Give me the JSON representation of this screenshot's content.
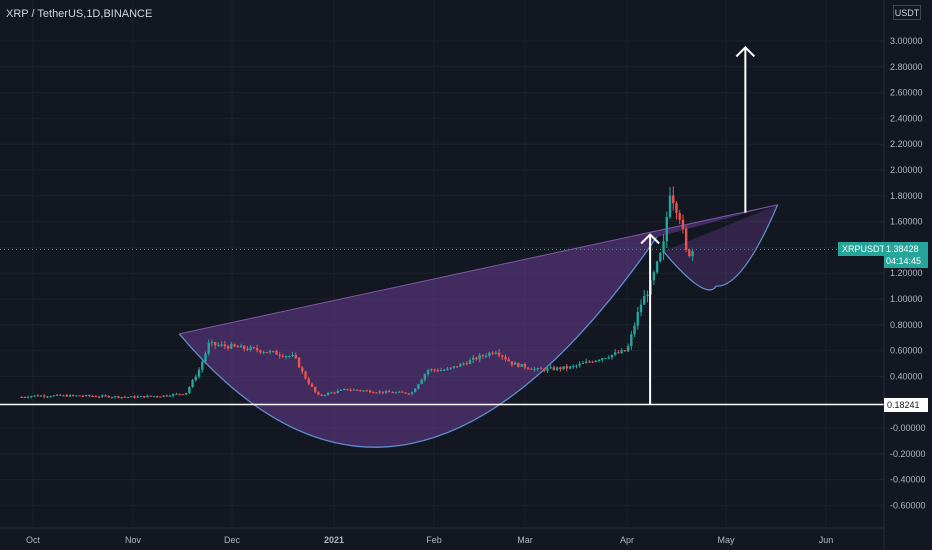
{
  "header": {
    "symbol": "XRP / TetherUS",
    "interval": "1D",
    "exchange": "BINANCE"
  },
  "price_scale": {
    "unit": "USDT",
    "ticks": [
      "3.00000",
      "2.80000",
      "2.60000",
      "2.40000",
      "2.20000",
      "2.00000",
      "1.80000",
      "1.60000",
      "1.40000",
      "1.20000",
      "1.00000",
      "0.80000",
      "0.60000",
      "0.40000",
      "0.20000",
      "-0.00000",
      "-0.20000",
      "-0.40000",
      "-0.60000"
    ]
  },
  "time_scale": {
    "ticks": [
      "Oct",
      "Nov",
      "Dec",
      "2021",
      "Feb",
      "Mar",
      "Apr",
      "May",
      "Jun"
    ]
  },
  "current_price": {
    "label": "XRPUSDT",
    "value": "1.38428",
    "countdown": "04:14:45"
  },
  "level_label": "0.18241",
  "colors": {
    "background": "#131722",
    "up": "#26a69a",
    "down": "#ef5350",
    "pattern_fill": "#6a3d8f",
    "curve": "#5b8ec9",
    "annotation": "#ffffff"
  },
  "chart_data": {
    "type": "candlestick",
    "symbol": "XRP / TetherUS",
    "interval": "1D",
    "exchange": "BINANCE",
    "ylim": [
      -0.7,
      3.15
    ],
    "x_ticks": [
      "Oct",
      "Nov",
      "Dec",
      "2021",
      "Feb",
      "Mar",
      "Apr",
      "May",
      "Jun"
    ],
    "y_ticks": [
      3.0,
      2.8,
      2.6,
      2.4,
      2.2,
      2.0,
      1.8,
      1.6,
      1.4,
      1.2,
      1.0,
      0.8,
      0.6,
      0.4,
      0.2,
      0.0,
      -0.2,
      -0.4,
      -0.6
    ],
    "horizontal_level": 0.18241,
    "last_price": 1.38428,
    "price_path": [
      [
        "Sep 20",
        0.24
      ],
      [
        "Oct 1",
        0.25
      ],
      [
        "Oct 15",
        0.25
      ],
      [
        "Nov 1",
        0.24
      ],
      [
        "Nov 10",
        0.25
      ],
      [
        "Nov 17",
        0.27
      ],
      [
        "Nov 21",
        0.45
      ],
      [
        "Nov 24",
        0.65
      ],
      [
        "Dec 1",
        0.63
      ],
      [
        "Dec 10",
        0.6
      ],
      [
        "Dec 20",
        0.55
      ],
      [
        "Dec 23",
        0.4
      ],
      [
        "Dec 27",
        0.25
      ],
      [
        "Jan 5",
        0.3
      ],
      [
        "Jan 15",
        0.28
      ],
      [
        "Jan 25",
        0.27
      ],
      [
        "Jan 30",
        0.45
      ],
      [
        "Feb 5",
        0.45
      ],
      [
        "Feb 15",
        0.55
      ],
      [
        "Feb 20",
        0.6
      ],
      [
        "Feb 25",
        0.5
      ],
      [
        "Mar 5",
        0.45
      ],
      [
        "Mar 15",
        0.47
      ],
      [
        "Mar 25",
        0.55
      ],
      [
        "Apr 1",
        0.6
      ],
      [
        "Apr 5",
        0.95
      ],
      [
        "Apr 8",
        1.1
      ],
      [
        "Apr 12",
        1.4
      ],
      [
        "Apr 14",
        1.85
      ],
      [
        "Apr 17",
        1.65
      ],
      [
        "Apr 19",
        1.35
      ],
      [
        "Apr 21",
        1.38
      ]
    ]
  }
}
